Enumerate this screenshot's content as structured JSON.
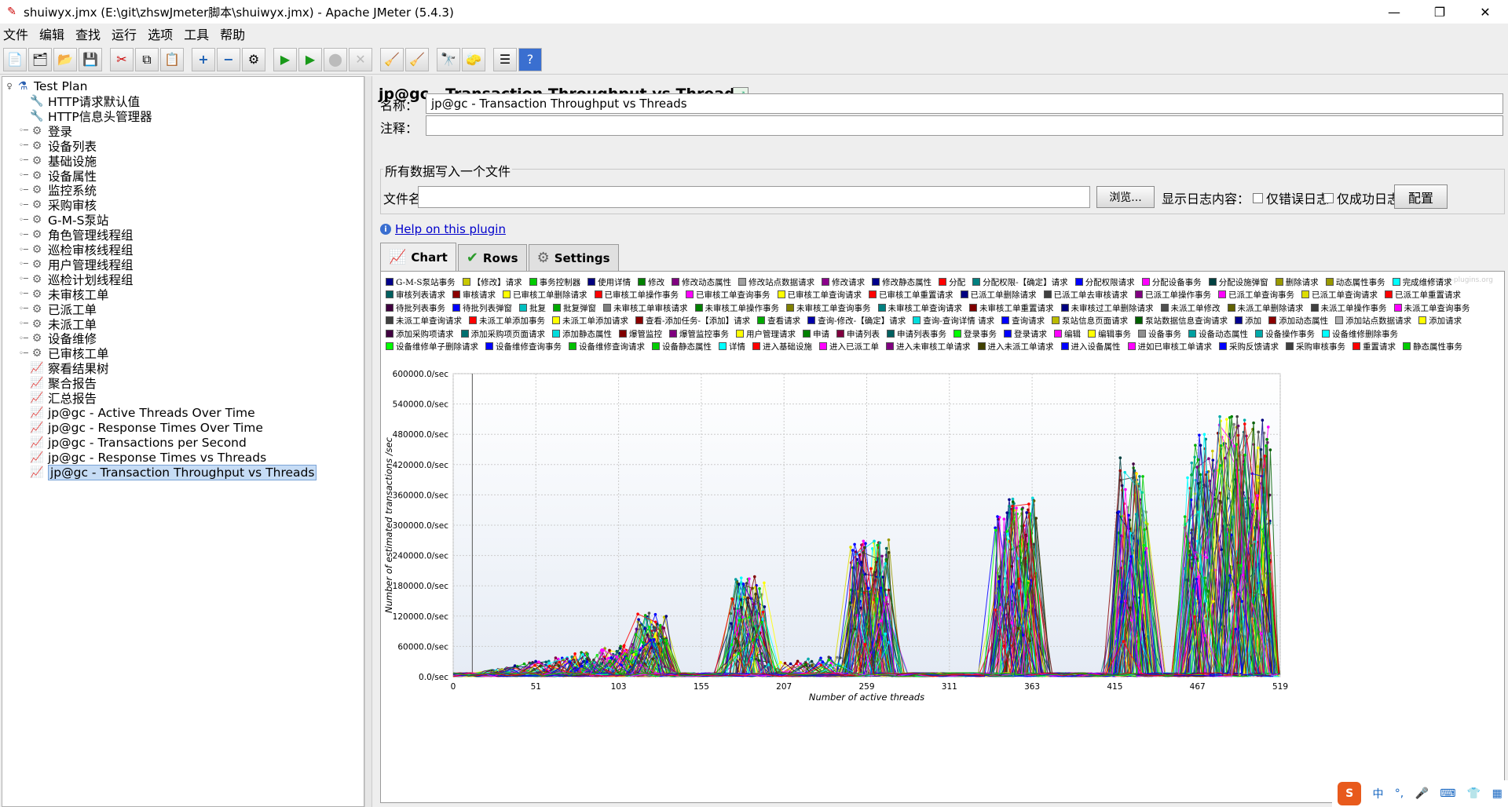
{
  "window": {
    "title": "shuiwyx.jmx (E:\\git\\zhswJmeter脚本\\shuiwyx.jmx) - Apache JMeter (5.4.3)",
    "min": "—",
    "max": "❐",
    "close": "✕"
  },
  "menu": [
    "文件",
    "编辑",
    "查找",
    "运行",
    "选项",
    "工具",
    "帮助"
  ],
  "tree": {
    "root": "Test Plan",
    "items": [
      {
        "label": "HTTP请求默认值",
        "icon": "wrench-icon",
        "expand": false
      },
      {
        "label": "HTTP信息头管理器",
        "icon": "wrench-icon",
        "expand": false
      },
      {
        "label": "登录",
        "icon": "gear-icon",
        "expand": true
      },
      {
        "label": "设备列表",
        "icon": "gear-icon",
        "expand": true
      },
      {
        "label": "基础设施",
        "icon": "gear-icon",
        "expand": true
      },
      {
        "label": "设备属性",
        "icon": "gear-icon",
        "expand": true
      },
      {
        "label": "监控系统",
        "icon": "gear-icon",
        "expand": true
      },
      {
        "label": "采购审核",
        "icon": "gear-icon",
        "expand": true
      },
      {
        "label": "G-M-S泵站",
        "icon": "gear-icon",
        "expand": true
      },
      {
        "label": "角色管理线程组",
        "icon": "gear-icon",
        "expand": true
      },
      {
        "label": "巡检审核线程组",
        "icon": "gear-icon",
        "expand": true
      },
      {
        "label": "用户管理线程组",
        "icon": "gear-icon",
        "expand": true
      },
      {
        "label": "巡检计划线程组",
        "icon": "gear-icon",
        "expand": true
      },
      {
        "label": "未审核工单",
        "icon": "gear-icon",
        "expand": true
      },
      {
        "label": "已派工单",
        "icon": "gear-icon",
        "expand": true
      },
      {
        "label": "未派工单",
        "icon": "gear-icon",
        "expand": true
      },
      {
        "label": "设备维修",
        "icon": "gear-icon",
        "expand": true
      },
      {
        "label": "已审核工单",
        "icon": "gear-icon",
        "expand": true
      },
      {
        "label": "察看结果树",
        "icon": "graph-icon",
        "expand": false
      },
      {
        "label": "聚合报告",
        "icon": "graph-icon",
        "expand": false
      },
      {
        "label": "汇总报告",
        "icon": "graph-icon",
        "expand": false
      },
      {
        "label": "jp@gc - Active Threads Over Time",
        "icon": "graph-icon",
        "expand": false
      },
      {
        "label": "jp@gc - Response Times Over Time",
        "icon": "graph-icon",
        "expand": false
      },
      {
        "label": "jp@gc - Transactions per Second",
        "icon": "graph-icon",
        "expand": false
      },
      {
        "label": "jp@gc - Response Times vs Threads",
        "icon": "graph-icon",
        "expand": false
      },
      {
        "label": "jp@gc - Transaction Throughput vs Threads",
        "icon": "graph-icon",
        "expand": false,
        "selected": true
      }
    ]
  },
  "panel": {
    "title": "jp@gc - Transaction Throughput vs Threads",
    "name_label": "名称：",
    "name_value": "jp@gc - Transaction Throughput vs Threads",
    "comment_label": "注释：",
    "comment_value": "",
    "group_title": "所有数据写入一个文件",
    "file_label": "文件名",
    "file_value": "",
    "browse": "浏览...",
    "log_label": "显示日志内容：",
    "errors_only": "仅错误日志",
    "success_only": "仅成功日志",
    "configure": "配置",
    "help": "Help on this plugin",
    "tabs": [
      "Chart",
      "Rows",
      "Settings"
    ],
    "watermark": "jmeter-plugins.org"
  },
  "chart_data": {
    "type": "line",
    "xlabel": "Number of active threads",
    "ylabel": "Number of estimated transactions /sec",
    "xlim": [
      0,
      519
    ],
    "ylim": [
      0,
      600000
    ],
    "x_ticks": [
      "0",
      "51",
      "103",
      "155",
      "207",
      "259",
      "311",
      "363",
      "415",
      "467",
      "519"
    ],
    "y_ticks": [
      "0.0/sec",
      "60000.0/sec",
      "120000.0/sec",
      "180000.0/sec",
      "240000.0/sec",
      "300000.0/sec",
      "360000.0/sec",
      "420000.0/sec",
      "480000.0/sec",
      "540000.0/sec",
      "600000.0/sec"
    ],
    "grid": true,
    "legend_position": "top",
    "peak_regions": [
      {
        "x": [
          120,
          128
        ],
        "peak": 128000
      },
      {
        "x": [
          180,
          190
        ],
        "peak": 200000
      },
      {
        "x": [
          255,
          268
        ],
        "peak": 272000
      },
      {
        "x": [
          346,
          360
        ],
        "peak": 355000
      },
      {
        "x": [
          422,
          430
        ],
        "peak": 437000
      },
      {
        "x": [
          465,
          470
        ],
        "peak": 485000
      },
      {
        "x": [
          482,
          507
        ],
        "peak": 515000
      }
    ],
    "series": [
      {
        "name": "G-M-S泵站事务",
        "color": "#00008b"
      },
      {
        "name": "【修改】请求",
        "color": "#c8c800"
      },
      {
        "name": "事务控制器",
        "color": "#00cc00"
      },
      {
        "name": "使用详情",
        "color": "#000080"
      },
      {
        "name": "修改",
        "color": "#008000"
      },
      {
        "name": "修改动态属性",
        "color": "#800080"
      },
      {
        "name": "修改站点数据请求",
        "color": "#a0a0a0"
      },
      {
        "name": "修改请求",
        "color": "#8b008b"
      },
      {
        "name": "修改静态属性",
        "color": "#00008b"
      },
      {
        "name": "分配",
        "color": "#ff0000"
      },
      {
        "name": "分配权限-【确定】请求",
        "color": "#008080"
      },
      {
        "name": "分配权限请求",
        "color": "#0000ff"
      },
      {
        "name": "分配设备事务",
        "color": "#ff00ff"
      },
      {
        "name": "分配设施弹窗",
        "color": "#004040"
      },
      {
        "name": "删除请求",
        "color": "#999900"
      },
      {
        "name": "动态属性事务",
        "color": "#999900"
      },
      {
        "name": "完成维修请求",
        "color": "#00ffff"
      },
      {
        "name": "审核列表请求",
        "color": "#006060"
      },
      {
        "name": "审核请求",
        "color": "#8b0000"
      },
      {
        "name": "已审核工单删除请求",
        "color": "#ffff00"
      },
      {
        "name": "已审核工单操作事务",
        "color": "#ff0000"
      },
      {
        "name": "已审核工单查询事务",
        "color": "#ff00ff"
      },
      {
        "name": "已审核工单查询请求",
        "color": "#ffff00"
      },
      {
        "name": "已审核工单重置请求",
        "color": "#ff0000"
      },
      {
        "name": "已派工单删除请求",
        "color": "#000080"
      },
      {
        "name": "已派工单去审核请求",
        "color": "#404040"
      },
      {
        "name": "已派工单操作事务",
        "color": "#800080"
      },
      {
        "name": "已派工单查询事务",
        "color": "#ff00ff"
      },
      {
        "name": "已派工单查询请求",
        "color": "#dddd00"
      },
      {
        "name": "已派工单重置请求",
        "color": "#ff0000"
      },
      {
        "name": "待批列表事务",
        "color": "#400040"
      },
      {
        "name": "待批列表弹窗",
        "color": "#0000ff"
      },
      {
        "name": "批复",
        "color": "#00c0c0"
      },
      {
        "name": "批复弹窗",
        "color": "#00aa00"
      },
      {
        "name": "未审核工单审核请求",
        "color": "#808080"
      },
      {
        "name": "未审核工单操作事务",
        "color": "#008000"
      },
      {
        "name": "未审核工单查询事务",
        "color": "#808000"
      },
      {
        "name": "未审核工单查询请求",
        "color": "#008080"
      },
      {
        "name": "未审核工单重置请求",
        "color": "#800000"
      },
      {
        "name": "未审核过工单删除请求",
        "color": "#000080"
      },
      {
        "name": "未派工单修改",
        "color": "#505050"
      },
      {
        "name": "未派工单删除请求",
        "color": "#606000"
      },
      {
        "name": "未派工单操作事务",
        "color": "#404040"
      },
      {
        "name": "未派工单查询事务",
        "color": "#ff00ff"
      },
      {
        "name": "未派工单查询请求",
        "color": "#404040"
      },
      {
        "name": "未派工单添加事务",
        "color": "#ff0000"
      },
      {
        "name": "未派工单添加请求",
        "color": "#ffff00"
      },
      {
        "name": "查看-添加任务-【添加】请求",
        "color": "#8b0000"
      },
      {
        "name": "查看请求",
        "color": "#00aa00"
      },
      {
        "name": "查询-修改-【确定】请求",
        "color": "#0000aa"
      },
      {
        "name": "查询-查询详情 请求",
        "color": "#00dddd"
      },
      {
        "name": "查询请求",
        "color": "#0000ff"
      },
      {
        "name": "泵站信息页面请求",
        "color": "#bbbb00"
      },
      {
        "name": "泵站数据信息查询请求",
        "color": "#006000"
      },
      {
        "name": "添加",
        "color": "#000090"
      },
      {
        "name": "添加动态属性",
        "color": "#8b0000"
      },
      {
        "name": "添加站点数据请求",
        "color": "#b0b0b0"
      },
      {
        "name": "添加请求",
        "color": "#ffff00"
      },
      {
        "name": "添加采购项请求",
        "color": "#400040"
      },
      {
        "name": "添加采购项页面请求",
        "color": "#007070"
      },
      {
        "name": "添加静态属性",
        "color": "#00dddd"
      },
      {
        "name": "爆管监控",
        "color": "#800000"
      },
      {
        "name": "爆管监控事务",
        "color": "#800080"
      },
      {
        "name": "用户管理请求",
        "color": "#ffff00"
      },
      {
        "name": "申请",
        "color": "#008000"
      },
      {
        "name": "申请列表",
        "color": "#800040"
      },
      {
        "name": "申请列表事务",
        "color": "#006060"
      },
      {
        "name": "登录事务",
        "color": "#00ff00"
      },
      {
        "name": "登录请求",
        "color": "#0000ff"
      },
      {
        "name": "编辑",
        "color": "#ff00ff"
      },
      {
        "name": "编辑事务",
        "color": "#ffff00"
      },
      {
        "name": "设备事务",
        "color": "#909090"
      },
      {
        "name": "设备动态属性",
        "color": "#00a0a0"
      },
      {
        "name": "设备操作事务",
        "color": "#00aaaa"
      },
      {
        "name": "设备维修删除事务",
        "color": "#00ffff"
      },
      {
        "name": "设备维修单子删除请求",
        "color": "#00ff00"
      },
      {
        "name": "设备维修查询事务",
        "color": "#0000ff"
      },
      {
        "name": "设备维修查询请求",
        "color": "#00c000"
      },
      {
        "name": "设备静态属性",
        "color": "#00cc00"
      },
      {
        "name": "详情",
        "color": "#00ffff"
      },
      {
        "name": "进入基础设施",
        "color": "#ff0000"
      },
      {
        "name": "进入已派工单",
        "color": "#ff00ff"
      },
      {
        "name": "进入未审核工单请求",
        "color": "#800080"
      },
      {
        "name": "进入未派工单请求",
        "color": "#404000"
      },
      {
        "name": "进入设备属性",
        "color": "#0000ff"
      },
      {
        "name": "进如已审核工单请求",
        "color": "#ff00ff"
      },
      {
        "name": "采购反馈请求",
        "color": "#0000ff"
      },
      {
        "name": "采购审核事务",
        "color": "#404040"
      },
      {
        "name": "重置请求",
        "color": "#ff0000"
      },
      {
        "name": "静态属性事务",
        "color": "#00cc00"
      }
    ]
  },
  "ime": {
    "logo": "S",
    "lang": "中"
  }
}
